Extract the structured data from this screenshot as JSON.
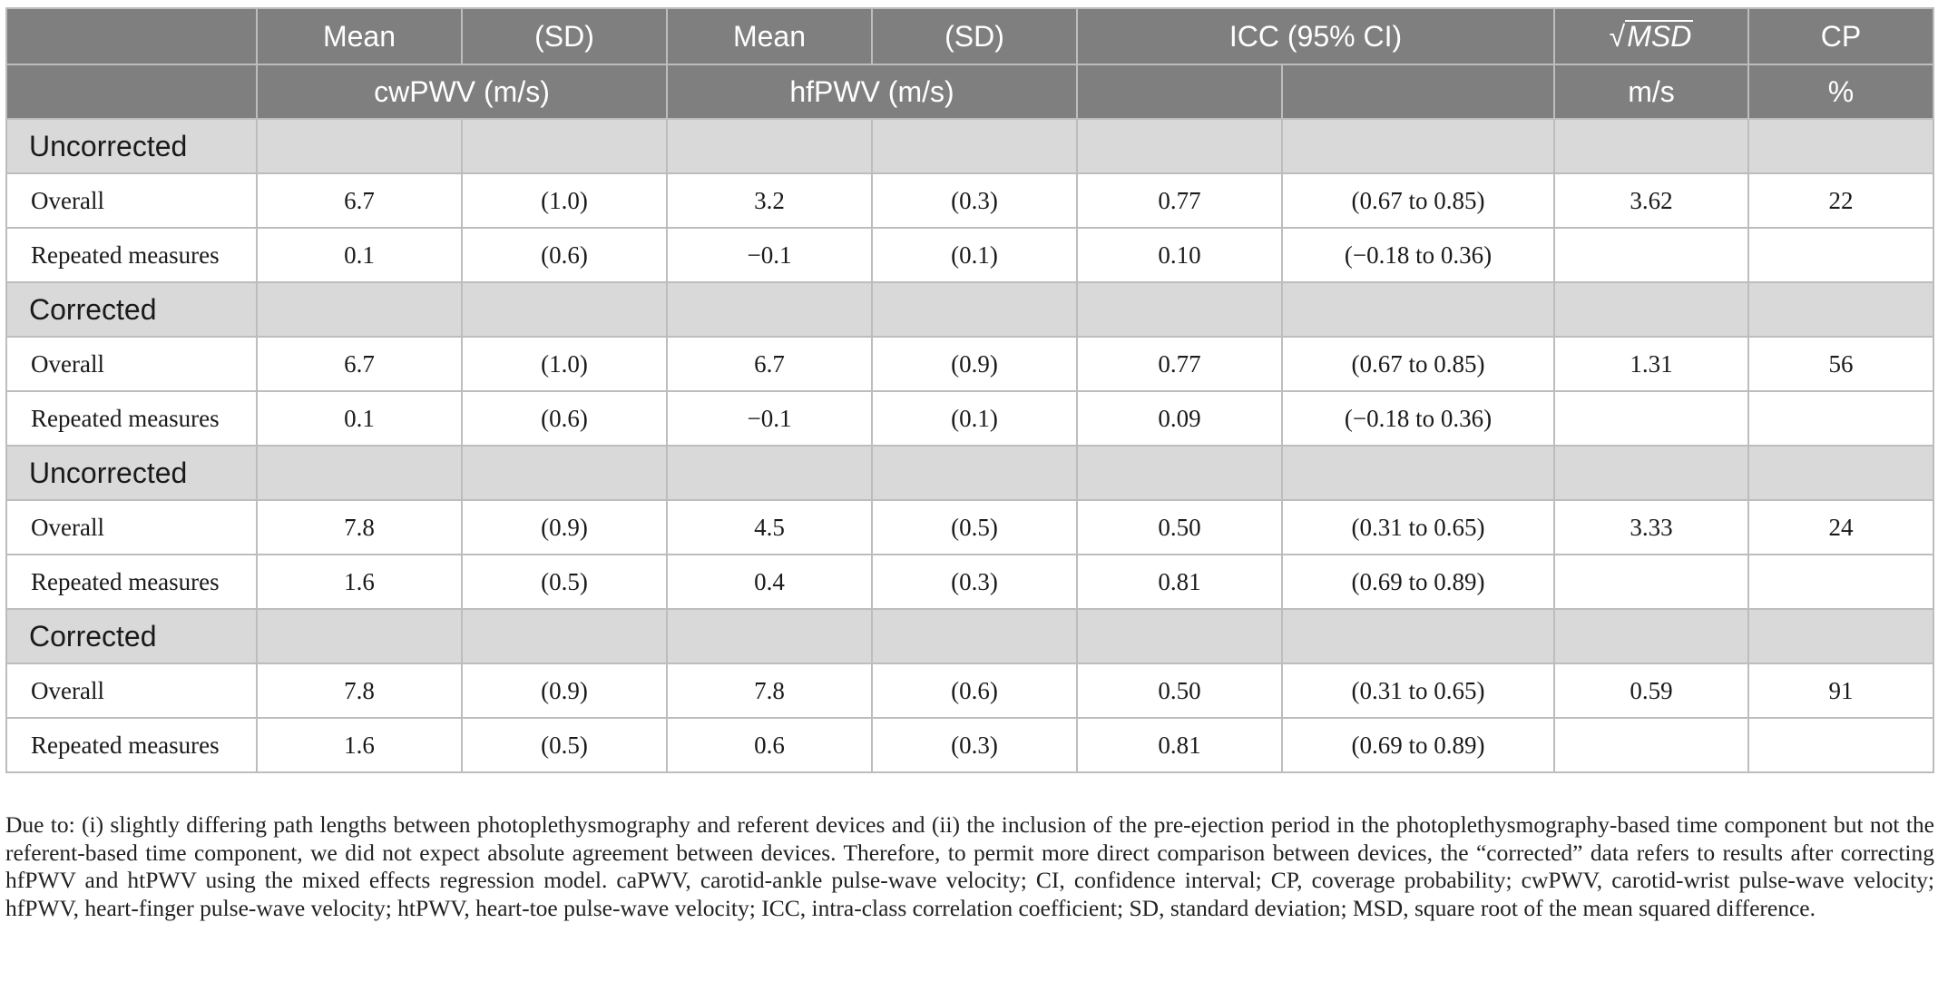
{
  "header": {
    "row1": {
      "mean1": "Mean",
      "sd1": "(SD)",
      "mean2": "Mean",
      "sd2": "(SD)",
      "icc": "ICC (95% CI)",
      "msd_symbol": "√",
      "msd_text": "MSD",
      "cp": "CP"
    },
    "row2": {
      "cwpwv": "cwPWV (m/s)",
      "hfpwv": "hfPWV (m/s)",
      "msd_unit": "m/s",
      "cp_unit": "%"
    }
  },
  "sections": [
    {
      "label": "Uncorrected",
      "rows": [
        {
          "label": "Overall",
          "cw_mean": "6.7",
          "cw_sd": "(1.0)",
          "hf_mean": "3.2",
          "hf_sd": "(0.3)",
          "icc": "0.77",
          "ci": "(0.67 to 0.85)",
          "msd": "3.62",
          "cp": "22"
        },
        {
          "label": "Repeated measures",
          "cw_mean": "0.1",
          "cw_sd": "(0.6)",
          "hf_mean": "−0.1",
          "hf_sd": "(0.1)",
          "icc": "0.10",
          "ci": "(−0.18 to 0.36)",
          "msd": "",
          "cp": ""
        }
      ]
    },
    {
      "label": "Corrected",
      "rows": [
        {
          "label": "Overall",
          "cw_mean": "6.7",
          "cw_sd": "(1.0)",
          "hf_mean": "6.7",
          "hf_sd": "(0.9)",
          "icc": "0.77",
          "ci": "(0.67 to 0.85)",
          "msd": "1.31",
          "cp": "56"
        },
        {
          "label": "Repeated measures",
          "cw_mean": "0.1",
          "cw_sd": "(0.6)",
          "hf_mean": "−0.1",
          "hf_sd": "(0.1)",
          "icc": "0.09",
          "ci": "(−0.18 to 0.36)",
          "msd": "",
          "cp": ""
        }
      ]
    },
    {
      "label": "Uncorrected",
      "rows": [
        {
          "label": "Overall",
          "cw_mean": "7.8",
          "cw_sd": "(0.9)",
          "hf_mean": "4.5",
          "hf_sd": "(0.5)",
          "icc": "0.50",
          "ci": "(0.31 to 0.65)",
          "msd": "3.33",
          "cp": "24"
        },
        {
          "label": "Repeated measures",
          "cw_mean": "1.6",
          "cw_sd": "(0.5)",
          "hf_mean": "0.4",
          "hf_sd": "(0.3)",
          "icc": "0.81",
          "ci": "(0.69 to 0.89)",
          "msd": "",
          "cp": ""
        }
      ]
    },
    {
      "label": "Corrected",
      "rows": [
        {
          "label": "Overall",
          "cw_mean": "7.8",
          "cw_sd": "(0.9)",
          "hf_mean": "7.8",
          "hf_sd": "(0.6)",
          "icc": "0.50",
          "ci": "(0.31 to 0.65)",
          "msd": "0.59",
          "cp": "91"
        },
        {
          "label": "Repeated measures",
          "cw_mean": "1.6",
          "cw_sd": "(0.5)",
          "hf_mean": "0.6",
          "hf_sd": "(0.3)",
          "icc": "0.81",
          "ci": "(0.69 to 0.89)",
          "msd": "",
          "cp": ""
        }
      ]
    }
  ],
  "footnote": "Due to: (i) slightly differing path lengths between photoplethysmography and referent devices and (ii) the inclusion of the pre-ejection period in the photoplethysmography-based time component but not the referent-based time component, we did not expect absolute agreement between devices. Therefore, to permit more direct comparison between devices, the “corrected” data refers to results after correcting hfPWV and htPWV using the mixed effects regression model. caPWV, carotid-ankle pulse-wave velocity; CI, confidence interval; CP, coverage probability; cwPWV, carotid-wrist pulse-wave velocity; hfPWV, heart-finger pulse-wave velocity; htPWV, heart-toe pulse-wave velocity; ICC, intra-class correlation coefficient; SD, standard deviation; MSD, square root of the mean squared difference."
}
